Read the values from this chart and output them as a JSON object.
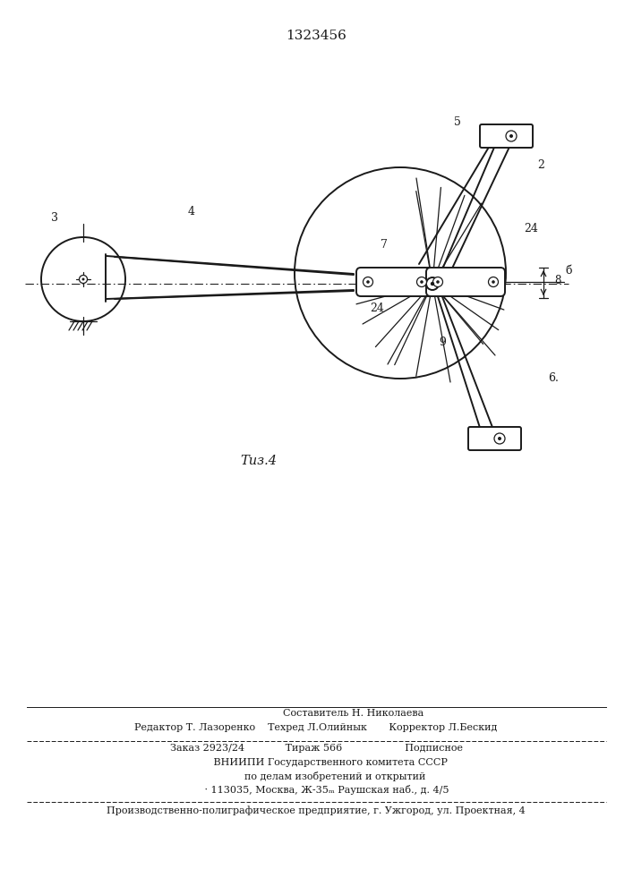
{
  "patent_number": "1323456",
  "fig_label": "Τиз.4",
  "bg_color": "#ffffff",
  "line_color": "#1a1a1a",
  "title_fontsize": 11,
  "small_fontsize": 7.5,
  "footer_line1": "                        Составитель Н. Николаева",
  "footer_line2": "Редактор Т. Лазоренко    Техред Л.Олийнык       Корректор Л.Бескид",
  "bottom_line1": "Заказ 2923/24             Тираж 566                    Подписное",
  "bottom_line2": "         ВНИИПИ Государственного комитета СССР",
  "bottom_line3": "            по делам изобретений и открытий",
  "bottom_line4": "       · 113035, Москва, Ж-35ₘ Раушская наб., д. 4/5",
  "last_line": "Производственно-полиграфическое предприятие, г. Ужгород, ул. Проектная, 4"
}
